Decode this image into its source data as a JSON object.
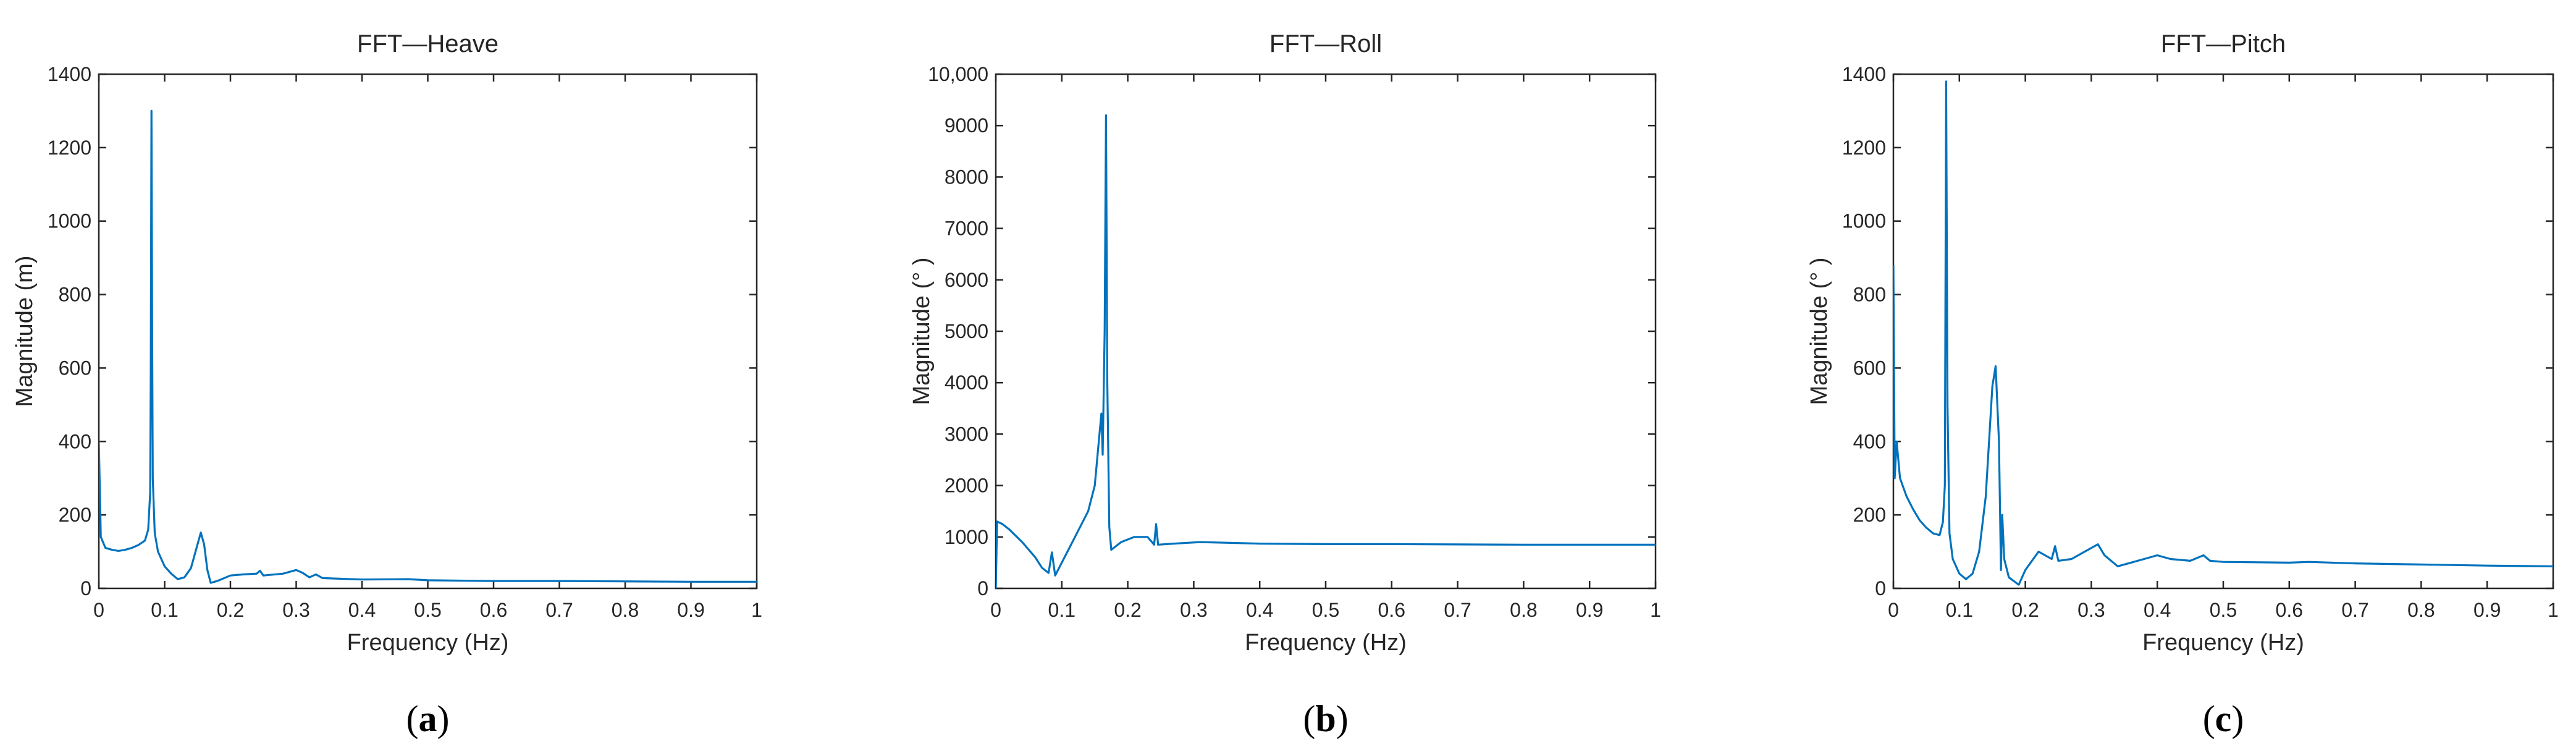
{
  "chart_data": [
    {
      "id": "a",
      "type": "line",
      "title": "FFT—Heave",
      "xlabel": "Frequency (Hz)",
      "ylabel": "Magnitude (m)",
      "xlim": [
        0,
        1
      ],
      "ylim": [
        0,
        1400
      ],
      "xticks": [
        0,
        0.1,
        0.2,
        0.3,
        0.4,
        0.5,
        0.6,
        0.7,
        0.8,
        0.9,
        1
      ],
      "xtick_labels": [
        "0",
        "0.1",
        "0.2",
        "0.3",
        "0.4",
        "0.5",
        "0.6",
        "0.7",
        "0.8",
        "0.9",
        "1"
      ],
      "yticks": [
        0,
        200,
        400,
        600,
        800,
        1000,
        1200,
        1400
      ],
      "ytick_labels": [
        "0",
        "200",
        "400",
        "600",
        "800",
        "1000",
        "1200",
        "1400"
      ],
      "grid": false,
      "caption_letter": "a",
      "series": [
        {
          "color": "#0072BD",
          "points": [
            [
              0,
              400
            ],
            [
              0.003,
              140
            ],
            [
              0.01,
              110
            ],
            [
              0.02,
              105
            ],
            [
              0.03,
              102
            ],
            [
              0.04,
              105
            ],
            [
              0.05,
              110
            ],
            [
              0.06,
              118
            ],
            [
              0.07,
              130
            ],
            [
              0.075,
              160
            ],
            [
              0.078,
              260
            ],
            [
              0.079,
              600
            ],
            [
              0.08,
              1300
            ],
            [
              0.081,
              700
            ],
            [
              0.082,
              300
            ],
            [
              0.085,
              150
            ],
            [
              0.09,
              100
            ],
            [
              0.1,
              60
            ],
            [
              0.11,
              40
            ],
            [
              0.12,
              25
            ],
            [
              0.13,
              30
            ],
            [
              0.14,
              55
            ],
            [
              0.15,
              120
            ],
            [
              0.155,
              152
            ],
            [
              0.16,
              120
            ],
            [
              0.165,
              50
            ],
            [
              0.17,
              15
            ],
            [
              0.18,
              20
            ],
            [
              0.2,
              35
            ],
            [
              0.22,
              38
            ],
            [
              0.24,
              40
            ],
            [
              0.245,
              48
            ],
            [
              0.25,
              35
            ],
            [
              0.28,
              40
            ],
            [
              0.3,
              50
            ],
            [
              0.31,
              42
            ],
            [
              0.32,
              30
            ],
            [
              0.33,
              38
            ],
            [
              0.34,
              28
            ],
            [
              0.4,
              24
            ],
            [
              0.47,
              25
            ],
            [
              0.5,
              22
            ],
            [
              0.6,
              20
            ],
            [
              0.7,
              20
            ],
            [
              0.8,
              19
            ],
            [
              0.9,
              18
            ],
            [
              1,
              18
            ]
          ]
        }
      ]
    },
    {
      "id": "b",
      "type": "line",
      "title": "FFT—Roll",
      "xlabel": "Frequency (Hz)",
      "ylabel": "Magnitude (° )",
      "xlim": [
        0,
        1
      ],
      "ylim": [
        0,
        10000
      ],
      "xticks": [
        0,
        0.1,
        0.2,
        0.3,
        0.4,
        0.5,
        0.6,
        0.7,
        0.8,
        0.9,
        1
      ],
      "xtick_labels": [
        "0",
        "0.1",
        "0.2",
        "0.3",
        "0.4",
        "0.5",
        "0.6",
        "0.7",
        "0.8",
        "0.9",
        "1"
      ],
      "yticks": [
        0,
        1000,
        2000,
        3000,
        4000,
        5000,
        6000,
        7000,
        8000,
        9000,
        10000
      ],
      "ytick_labels": [
        "0",
        "1000",
        "2000",
        "3000",
        "4000",
        "5000",
        "6000",
        "7000",
        "8000",
        "9000",
        "10,000"
      ],
      "grid": false,
      "caption_letter": "b",
      "series": [
        {
          "color": "#0072BD",
          "points": [
            [
              0,
              0
            ],
            [
              0.002,
              1300
            ],
            [
              0.01,
              1250
            ],
            [
              0.02,
              1150
            ],
            [
              0.04,
              900
            ],
            [
              0.06,
              600
            ],
            [
              0.07,
              400
            ],
            [
              0.08,
              300
            ],
            [
              0.085,
              700
            ],
            [
              0.09,
              250
            ],
            [
              0.1,
              500
            ],
            [
              0.12,
              1000
            ],
            [
              0.14,
              1500
            ],
            [
              0.15,
              2000
            ],
            [
              0.155,
              2700
            ],
            [
              0.16,
              3400
            ],
            [
              0.162,
              2600
            ],
            [
              0.165,
              5000
            ],
            [
              0.167,
              9200
            ],
            [
              0.169,
              4000
            ],
            [
              0.172,
              1200
            ],
            [
              0.175,
              750
            ],
            [
              0.19,
              900
            ],
            [
              0.21,
              1000
            ],
            [
              0.23,
              1000
            ],
            [
              0.24,
              850
            ],
            [
              0.243,
              1250
            ],
            [
              0.246,
              850
            ],
            [
              0.27,
              870
            ],
            [
              0.31,
              900
            ],
            [
              0.4,
              870
            ],
            [
              0.5,
              860
            ],
            [
              0.6,
              860
            ],
            [
              0.7,
              855
            ],
            [
              0.8,
              850
            ],
            [
              0.9,
              850
            ],
            [
              1,
              850
            ]
          ]
        }
      ]
    },
    {
      "id": "c",
      "type": "line",
      "title": "FFT—Pitch",
      "xlabel": "Frequency (Hz)",
      "ylabel": "Magnitude (° )",
      "xlim": [
        0,
        1
      ],
      "ylim": [
        0,
        1400
      ],
      "xticks": [
        0,
        0.1,
        0.2,
        0.3,
        0.4,
        0.5,
        0.6,
        0.7,
        0.8,
        0.9,
        1
      ],
      "xtick_labels": [
        "0",
        "0.1",
        "0.2",
        "0.3",
        "0.4",
        "0.5",
        "0.6",
        "0.7",
        "0.8",
        "0.9",
        "1"
      ],
      "yticks": [
        0,
        200,
        400,
        600,
        800,
        1000,
        1200,
        1400
      ],
      "ytick_labels": [
        "0",
        "200",
        "400",
        "600",
        "800",
        "1000",
        "1200",
        "1400"
      ],
      "grid": false,
      "caption_letter": "c",
      "series": [
        {
          "color": "#0072BD",
          "points": [
            [
              0,
              880
            ],
            [
              0.002,
              300
            ],
            [
              0.005,
              400
            ],
            [
              0.01,
              300
            ],
            [
              0.02,
              250
            ],
            [
              0.03,
              215
            ],
            [
              0.04,
              185
            ],
            [
              0.05,
              165
            ],
            [
              0.06,
              150
            ],
            [
              0.07,
              145
            ],
            [
              0.075,
              180
            ],
            [
              0.078,
              280
            ],
            [
              0.08,
              1380
            ],
            [
              0.082,
              500
            ],
            [
              0.085,
              150
            ],
            [
              0.09,
              80
            ],
            [
              0.1,
              40
            ],
            [
              0.11,
              25
            ],
            [
              0.12,
              40
            ],
            [
              0.13,
              100
            ],
            [
              0.14,
              250
            ],
            [
              0.15,
              550
            ],
            [
              0.155,
              605
            ],
            [
              0.16,
              400
            ],
            [
              0.163,
              50
            ],
            [
              0.165,
              200
            ],
            [
              0.168,
              80
            ],
            [
              0.175,
              30
            ],
            [
              0.19,
              10
            ],
            [
              0.2,
              50
            ],
            [
              0.22,
              100
            ],
            [
              0.24,
              80
            ],
            [
              0.245,
              115
            ],
            [
              0.25,
              75
            ],
            [
              0.27,
              80
            ],
            [
              0.3,
              110
            ],
            [
              0.31,
              120
            ],
            [
              0.32,
              90
            ],
            [
              0.34,
              60
            ],
            [
              0.36,
              70
            ],
            [
              0.38,
              80
            ],
            [
              0.4,
              90
            ],
            [
              0.42,
              80
            ],
            [
              0.45,
              75
            ],
            [
              0.47,
              90
            ],
            [
              0.48,
              75
            ],
            [
              0.5,
              72
            ],
            [
              0.6,
              70
            ],
            [
              0.63,
              72
            ],
            [
              0.7,
              68
            ],
            [
              0.8,
              65
            ],
            [
              0.9,
              62
            ],
            [
              1,
              60
            ]
          ]
        }
      ]
    }
  ]
}
